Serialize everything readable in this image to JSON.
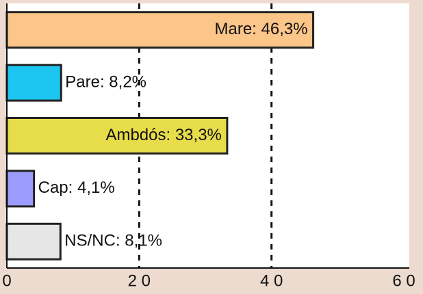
{
  "chart_data": {
    "type": "hbar",
    "values": [
      46.3,
      8.2,
      33.3,
      4.1,
      8.1
    ],
    "value_labels": [
      "Mare: 46,3%",
      "Pare: 8,2%",
      "Ambdós: 33,3%",
      "Cap: 4,1%",
      "NS/NC: 8,1%"
    ],
    "colors": [
      "#fcc589",
      "#1cc6f0",
      "#e7dc4a",
      "#9c9cff",
      "#e6e6e6"
    ],
    "xlim": [
      0,
      60
    ],
    "xticks": [
      0,
      {
        "value": 20,
        "label": "2 0"
      },
      {
        "value": 40,
        "label": "4 0"
      },
      {
        "value": 60,
        "label": "6 0"
      }
    ],
    "grid": true
  }
}
